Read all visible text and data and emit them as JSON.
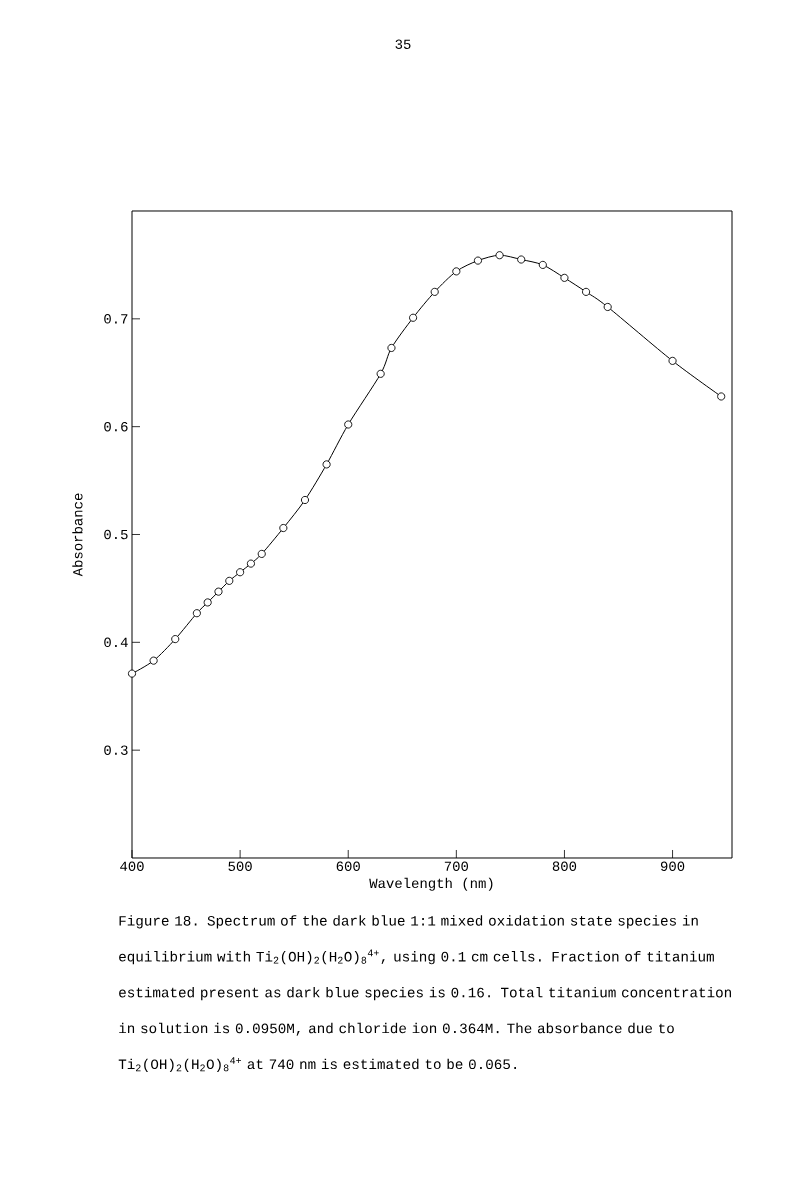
{
  "chart_data": {
    "type": "line",
    "xlabel": "Wavelength (nm)",
    "ylabel": "Absorbance",
    "annotations": [
      "35",
      "Figure 18.  Spectrum of the dark blue 1:1 mixed oxidation state species in equilibrium with Ti$_{2}$(OH)$_{2}$(H$_{2}$O)$_{8}$$^{4+}$, using 0.1 cm cells. Fraction of titanium estimated present as dark blue species is 0.16.  Total titanium concentration in solution is 0.0950M, and chloride ion 0.364M.  The absorbance due to Ti$_{2}$(OH)$_{2}$(H$_{2}$O)$_{8}$$^{4+}$ at 740 nm is estimated to be 0.065."
    ],
    "x": [
      400,
      420,
      440,
      460,
      470,
      480,
      490,
      500,
      510,
      520,
      540,
      560,
      580,
      600,
      630,
      640,
      660,
      680,
      700,
      720,
      740,
      760,
      780,
      800,
      820,
      840,
      900,
      945
    ],
    "series": [
      {
        "color": "#000000",
        "values": [
          0.371,
          0.383,
          0.403,
          0.427,
          0.437,
          0.447,
          0.457,
          0.465,
          0.473,
          0.482,
          0.506,
          0.532,
          0.565,
          0.602,
          0.649,
          0.673,
          0.701,
          0.725,
          0.744,
          0.754,
          0.759,
          0.755,
          0.75,
          0.738,
          0.725,
          0.711,
          0.661,
          0.628
        ]
      }
    ],
    "xlim": [
      400,
      955
    ],
    "ylim": [
      0.2,
      0.8
    ],
    "xticks": [
      400,
      500,
      600,
      700,
      800,
      900
    ],
    "yticks": [
      0.3,
      0.4,
      0.5,
      0.6,
      0.7
    ],
    "grid": false,
    "marker": "circle",
    "line_style": "solid"
  }
}
